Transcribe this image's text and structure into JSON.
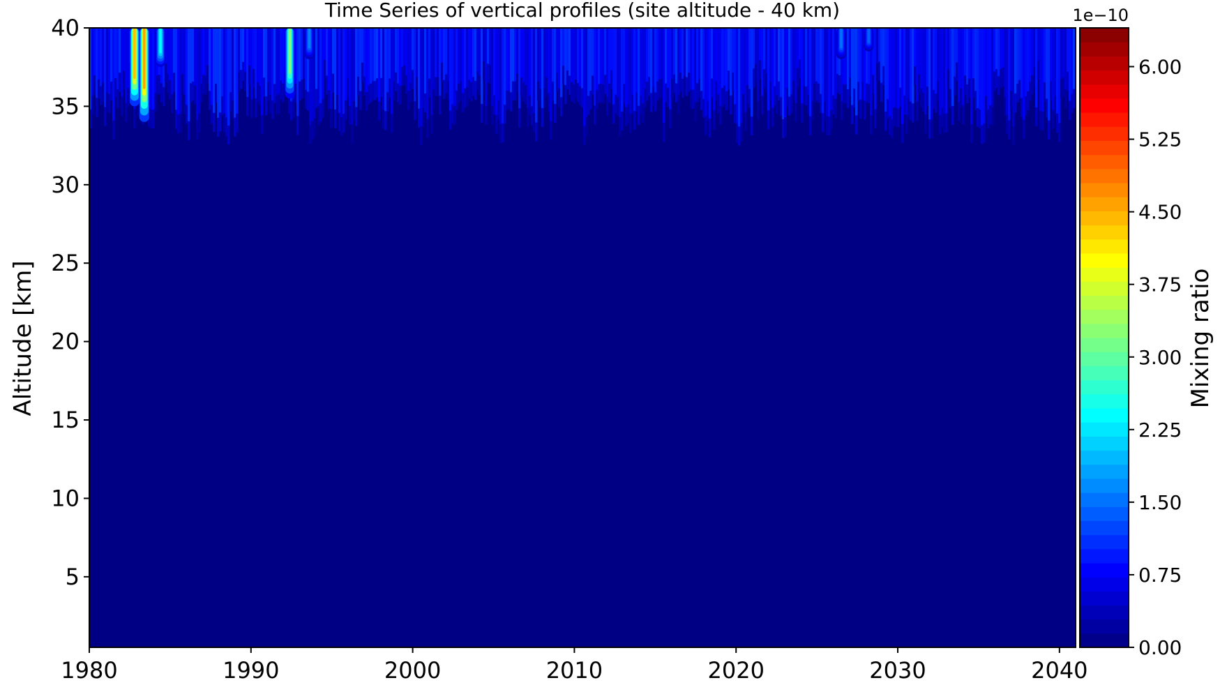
{
  "chart_data": {
    "type": "heatmap",
    "title": "Time Series of vertical profiles (site altitude - 40 km)",
    "xlabel": "",
    "ylabel": "Altitude [km]",
    "xlim": [
      1980,
      2041
    ],
    "ylim": [
      0.5,
      40
    ],
    "x_ticks": [
      "1980",
      "1990",
      "2000",
      "2010",
      "2020",
      "2030",
      "2040"
    ],
    "y_ticks": [
      "5",
      "10",
      "15",
      "20",
      "25",
      "30",
      "35",
      "40"
    ],
    "colorbar": {
      "label": "Mixing ratio",
      "exponent": "1e−10",
      "range": [
        0,
        6.4
      ],
      "ticks": [
        "0.00",
        "0.75",
        "1.50",
        "2.25",
        "3.00",
        "3.75",
        "4.50",
        "5.25",
        "6.00"
      ],
      "colormap": "jet"
    },
    "features": [
      {
        "x": 1982.8,
        "alt_bottom": 35.0,
        "peak": 4.4
      },
      {
        "x": 1983.4,
        "alt_bottom": 34.0,
        "peak": 4.6
      },
      {
        "x": 1984.4,
        "alt_bottom": 37.5,
        "peak": 2.4
      },
      {
        "x": 1992.4,
        "alt_bottom": 35.5,
        "peak": 3.2
      },
      {
        "x": 1993.6,
        "alt_bottom": 38.0,
        "peak": 1.6
      },
      {
        "x": 2026.5,
        "alt_bottom": 38.0,
        "peak": 1.5
      },
      {
        "x": 2028.2,
        "alt_bottom": 38.5,
        "peak": 1.4
      }
    ],
    "background_level": 0.05,
    "upper_level": 0.9,
    "upper_layer_bottom": 33
  }
}
